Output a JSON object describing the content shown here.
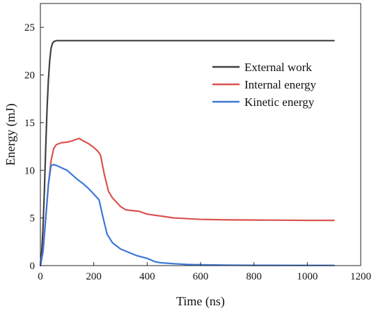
{
  "chart_data": {
    "type": "line",
    "xlabel": "Time (ns)",
    "ylabel": "Energy (mJ)",
    "xlim": [
      0,
      1200
    ],
    "ylim": [
      0,
      27.5
    ],
    "xticks": [
      0,
      200,
      400,
      600,
      800,
      1000,
      1200
    ],
    "yticks": [
      0,
      5,
      10,
      15,
      20,
      25
    ],
    "grid": false,
    "legend_position": "top-right",
    "series": [
      {
        "name": "External work",
        "color": "#404040",
        "x": [
          0,
          5,
          10,
          15,
          20,
          25,
          30,
          35,
          40,
          45,
          50,
          60,
          80,
          100,
          200,
          400,
          600,
          800,
          1000,
          1100
        ],
        "y": [
          0,
          1.5,
          4.0,
          8.0,
          12.5,
          16.5,
          19.5,
          21.5,
          22.8,
          23.3,
          23.5,
          23.6,
          23.6,
          23.6,
          23.6,
          23.6,
          23.6,
          23.6,
          23.6,
          23.6
        ]
      },
      {
        "name": "Internal energy",
        "color": "#d9534f",
        "x": [
          0,
          10,
          20,
          30,
          40,
          50,
          60,
          80,
          100,
          120,
          145,
          160,
          180,
          200,
          215,
          225,
          240,
          255,
          270,
          300,
          320,
          350,
          370,
          400,
          450,
          500,
          600,
          700,
          800,
          1000,
          1100
        ],
        "y": [
          0,
          1.5,
          5.0,
          8.5,
          11.0,
          12.3,
          12.7,
          12.9,
          12.95,
          13.1,
          13.35,
          13.1,
          12.8,
          12.4,
          12.0,
          11.6,
          9.5,
          7.8,
          7.1,
          6.2,
          5.85,
          5.75,
          5.7,
          5.4,
          5.2,
          5.0,
          4.85,
          4.8,
          4.78,
          4.75,
          4.75
        ]
      },
      {
        "name": "Kinetic energy",
        "color": "#3c78d8",
        "x": [
          0,
          10,
          20,
          30,
          40,
          50,
          60,
          80,
          100,
          120,
          140,
          160,
          180,
          200,
          220,
          235,
          250,
          270,
          300,
          330,
          360,
          400,
          430,
          450,
          500,
          550,
          600,
          700,
          800,
          1000,
          1100
        ],
        "y": [
          0,
          1.5,
          5.0,
          8.5,
          10.5,
          10.6,
          10.5,
          10.25,
          10.0,
          9.5,
          9.0,
          8.6,
          8.1,
          7.5,
          6.9,
          5.0,
          3.3,
          2.4,
          1.75,
          1.4,
          1.05,
          0.75,
          0.4,
          0.3,
          0.2,
          0.12,
          0.08,
          0.05,
          0.03,
          0.02,
          0.02
        ]
      }
    ]
  }
}
